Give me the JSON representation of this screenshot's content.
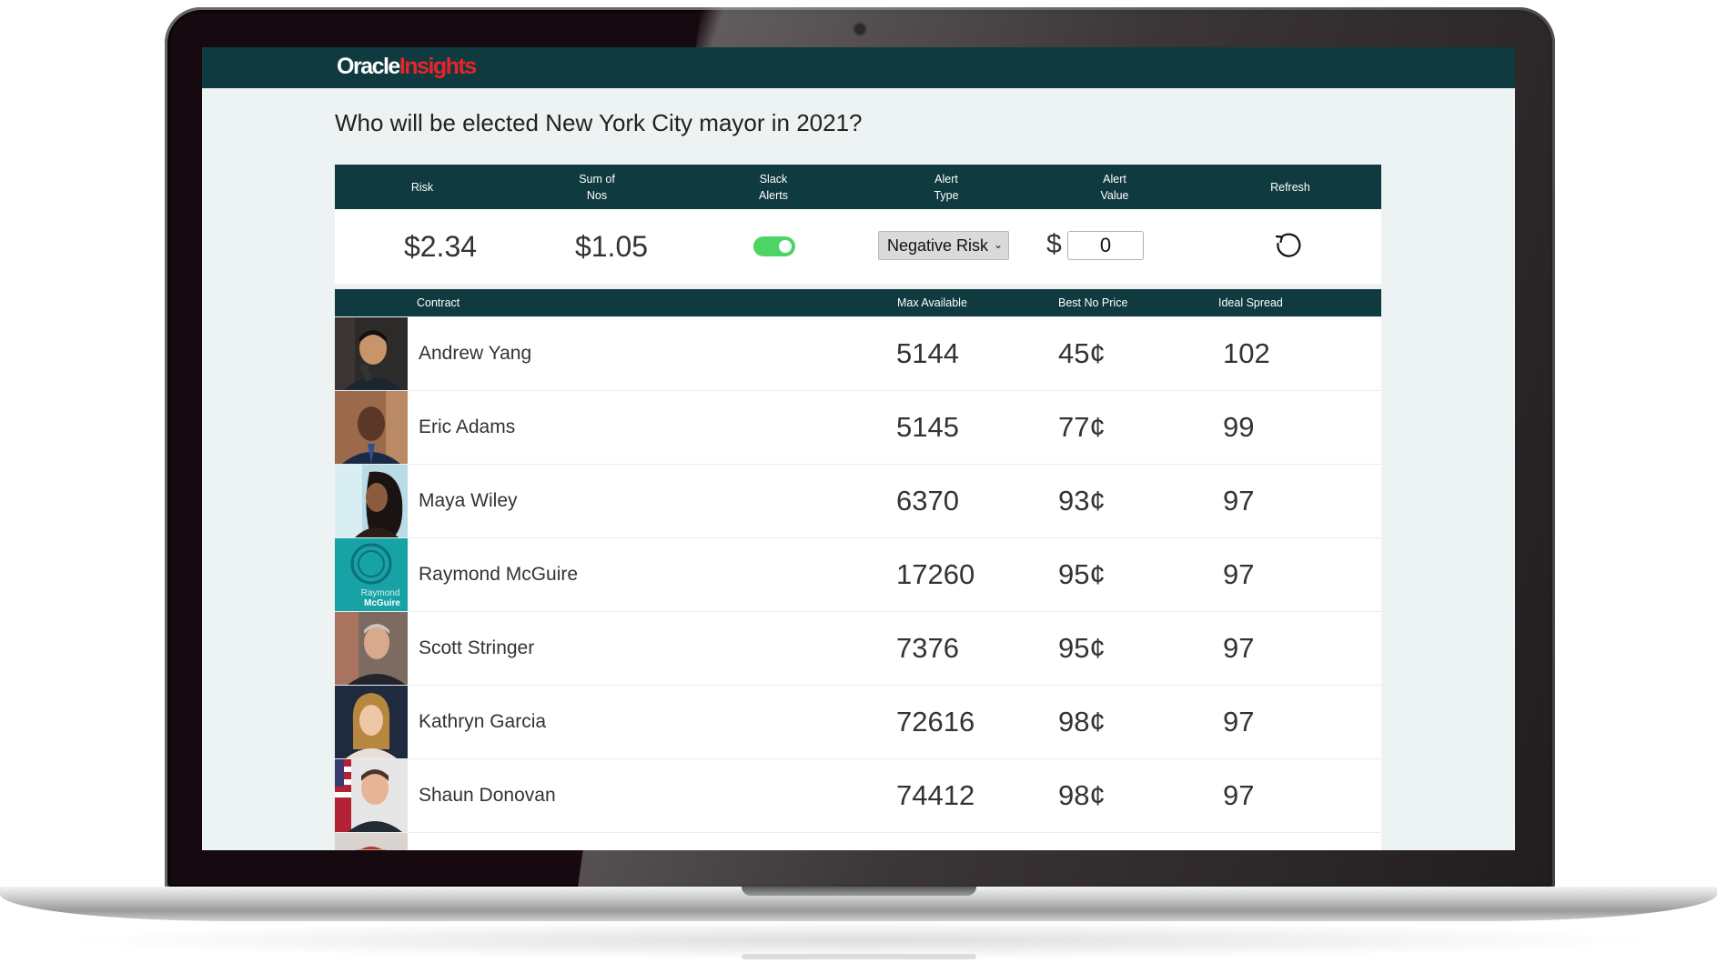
{
  "app": {
    "logo_primary": "Oracle",
    "logo_accent": "Insights"
  },
  "question": "Who will be elected New York City mayor in 2021?",
  "summary": {
    "headers": {
      "risk": [
        "Risk"
      ],
      "sum_nos": [
        "Sum of",
        "Nos"
      ],
      "slack": [
        "Slack",
        "Alerts"
      ],
      "alert_type": [
        "Alert",
        "Type"
      ],
      "alert_value": [
        "Alert",
        "Value"
      ],
      "refresh": [
        "Refresh"
      ]
    },
    "risk": "$2.34",
    "sum_nos": "$1.05",
    "slack_alerts_on": true,
    "alert_type": "Negative Risk",
    "alert_currency": "$",
    "alert_value": "0"
  },
  "table": {
    "headers": {
      "contract": "Contract",
      "max_available": "Max Available",
      "best_no_price": "Best No Price",
      "ideal_spread": "Ideal Spread"
    },
    "rows": [
      {
        "name": "Andrew Yang",
        "max_available": "5144",
        "best_no_price": "45¢",
        "ideal_spread": "102"
      },
      {
        "name": "Eric Adams",
        "max_available": "5145",
        "best_no_price": "77¢",
        "ideal_spread": "99"
      },
      {
        "name": "Maya Wiley",
        "max_available": "6370",
        "best_no_price": "93¢",
        "ideal_spread": "97"
      },
      {
        "name": "Raymond McGuire",
        "max_available": "17260",
        "best_no_price": "95¢",
        "ideal_spread": "97",
        "avatar_text": [
          "Raymond",
          "McGuire"
        ]
      },
      {
        "name": "Scott Stringer",
        "max_available": "7376",
        "best_no_price": "95¢",
        "ideal_spread": "97"
      },
      {
        "name": "Kathryn Garcia",
        "max_available": "72616",
        "best_no_price": "98¢",
        "ideal_spread": "97"
      },
      {
        "name": "Shaun Donovan",
        "max_available": "74412",
        "best_no_price": "98¢",
        "ideal_spread": "97"
      }
    ]
  },
  "colors": {
    "header_bg": "#0f3a40",
    "logo_accent": "#e8242b",
    "toggle_on": "#4cd464",
    "page_bg": "#edf2f2"
  },
  "icons": {
    "refresh": "refresh-icon",
    "dropdown": "chevron-down-icon"
  }
}
